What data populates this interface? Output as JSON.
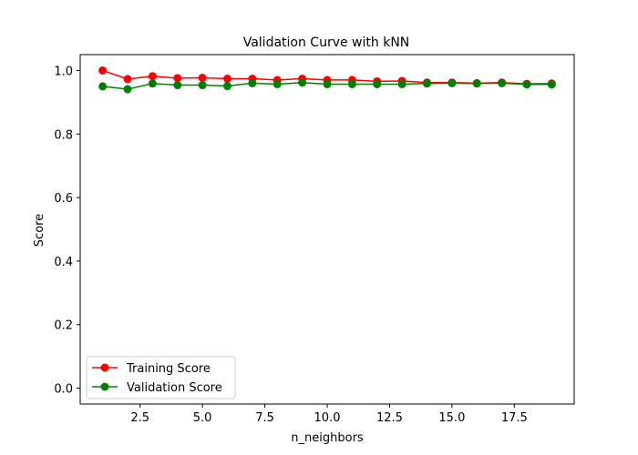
{
  "chart_data": {
    "type": "line",
    "title": "Validation Curve with kNN",
    "xlabel": "n_neighbors",
    "ylabel": "Score",
    "xlim": [
      0.1,
      19.9
    ],
    "ylim": [
      -0.05,
      1.05
    ],
    "xticks": [
      2.5,
      5.0,
      7.5,
      10.0,
      12.5,
      15.0,
      17.5
    ],
    "xtick_labels": [
      "2.5",
      "5.0",
      "7.5",
      "10.0",
      "12.5",
      "15.0",
      "17.5"
    ],
    "yticks": [
      0.0,
      0.2,
      0.4,
      0.6,
      0.8,
      1.0
    ],
    "ytick_labels": [
      "0.0",
      "0.2",
      "0.4",
      "0.6",
      "0.8",
      "1.0"
    ],
    "grid": false,
    "legend_position": "lower-left",
    "x": [
      1,
      2,
      3,
      4,
      5,
      6,
      7,
      8,
      9,
      10,
      11,
      12,
      13,
      14,
      15,
      16,
      17,
      18,
      19
    ],
    "series": [
      {
        "name": "Training Score",
        "color": "#ff0000",
        "marker": "circle",
        "values": [
          1.0,
          0.973,
          0.982,
          0.976,
          0.977,
          0.974,
          0.974,
          0.97,
          0.974,
          0.97,
          0.97,
          0.966,
          0.967,
          0.962,
          0.962,
          0.96,
          0.962,
          0.958,
          0.959
        ]
      },
      {
        "name": "Validation Score",
        "color": "#008000",
        "marker": "circle",
        "values": [
          0.95,
          0.941,
          0.959,
          0.954,
          0.954,
          0.951,
          0.96,
          0.957,
          0.962,
          0.957,
          0.957,
          0.957,
          0.957,
          0.959,
          0.96,
          0.959,
          0.96,
          0.956,
          0.956
        ]
      }
    ]
  }
}
